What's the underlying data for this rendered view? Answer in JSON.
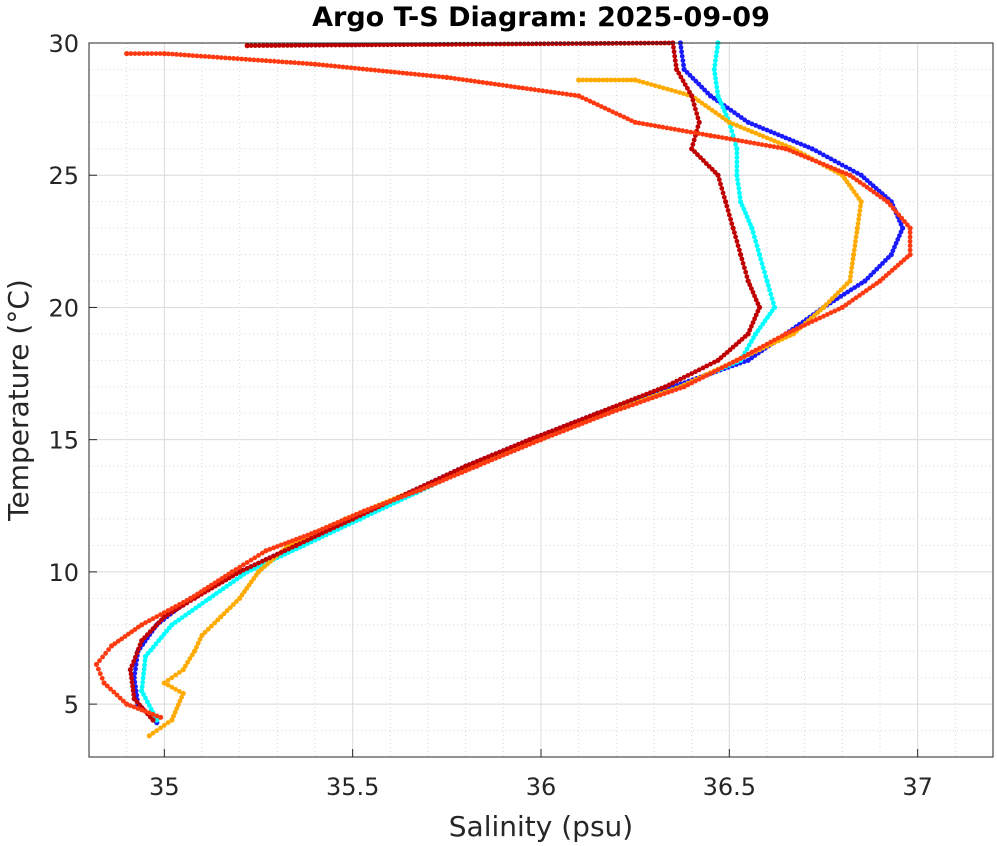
{
  "chart_data": {
    "type": "scatter",
    "title": "Argo T-S Diagram: 2025-09-09",
    "xlabel": "Salinity (psu)",
    "ylabel": "Temperature (°C)",
    "xlim": [
      34.8,
      37.2
    ],
    "ylim": [
      3,
      30
    ],
    "xticks": [
      35,
      35.5,
      36,
      36.5,
      37
    ],
    "xtick_labels": [
      "35",
      "35.5",
      "36",
      "36.5",
      "37"
    ],
    "yticks": [
      5,
      10,
      15,
      20,
      25,
      30
    ],
    "ytick_labels": [
      "5",
      "10",
      "15",
      "20",
      "25",
      "30"
    ],
    "grid": true,
    "minor_grid": true,
    "legend": "none",
    "series": [
      {
        "color": "#1a1aff",
        "points": [
          [
            34.98,
            4.3
          ],
          [
            34.93,
            5.0
          ],
          [
            34.92,
            6.0
          ],
          [
            34.93,
            7.0
          ],
          [
            34.98,
            8.0
          ],
          [
            35.07,
            9.0
          ],
          [
            35.2,
            10.0
          ],
          [
            35.35,
            11.0
          ],
          [
            35.5,
            12.0
          ],
          [
            35.65,
            13.0
          ],
          [
            35.8,
            14.0
          ],
          [
            35.97,
            15.0
          ],
          [
            36.15,
            16.0
          ],
          [
            36.35,
            17.0
          ],
          [
            36.55,
            18.0
          ],
          [
            36.65,
            19.0
          ],
          [
            36.75,
            20.0
          ],
          [
            36.86,
            21.0
          ],
          [
            36.93,
            22.0
          ],
          [
            36.96,
            23.0
          ],
          [
            36.93,
            24.0
          ],
          [
            36.85,
            25.0
          ],
          [
            36.72,
            26.0
          ],
          [
            36.55,
            27.0
          ],
          [
            36.45,
            28.0
          ],
          [
            36.38,
            29.0
          ],
          [
            36.37,
            30.0
          ]
        ]
      },
      {
        "color": "#00ffff",
        "points": [
          [
            34.98,
            4.4
          ],
          [
            34.94,
            5.5
          ],
          [
            34.95,
            6.8
          ],
          [
            35.02,
            8.0
          ],
          [
            35.12,
            9.0
          ],
          [
            35.22,
            10.0
          ],
          [
            35.37,
            11.0
          ],
          [
            35.52,
            12.0
          ],
          [
            35.67,
            13.0
          ],
          [
            35.82,
            14.0
          ],
          [
            35.99,
            15.0
          ],
          [
            36.17,
            16.0
          ],
          [
            36.37,
            17.0
          ],
          [
            36.53,
            18.0
          ],
          [
            36.57,
            19.0
          ],
          [
            36.62,
            20.0
          ],
          [
            36.6,
            21.0
          ],
          [
            36.58,
            22.0
          ],
          [
            36.56,
            23.0
          ],
          [
            36.53,
            24.0
          ],
          [
            36.52,
            25.0
          ],
          [
            36.52,
            26.0
          ],
          [
            36.5,
            27.0
          ],
          [
            36.47,
            28.0
          ],
          [
            36.46,
            29.0
          ],
          [
            36.47,
            30.0
          ]
        ]
      },
      {
        "color": "#ffaa00",
        "points": [
          [
            34.96,
            3.8
          ],
          [
            35.02,
            4.4
          ],
          [
            35.05,
            5.4
          ],
          [
            35.0,
            5.8
          ],
          [
            35.05,
            6.3
          ],
          [
            35.08,
            7.0
          ],
          [
            35.1,
            7.6
          ],
          [
            35.15,
            8.3
          ],
          [
            35.2,
            9.0
          ],
          [
            35.25,
            10.0
          ],
          [
            35.33,
            11.0
          ],
          [
            35.48,
            12.0
          ],
          [
            35.65,
            13.0
          ],
          [
            35.82,
            14.0
          ],
          [
            35.99,
            15.0
          ],
          [
            36.17,
            16.0
          ],
          [
            36.37,
            17.0
          ],
          [
            36.52,
            18.0
          ],
          [
            36.67,
            19.0
          ],
          [
            36.75,
            20.0
          ],
          [
            36.82,
            21.0
          ],
          [
            36.83,
            22.0
          ],
          [
            36.84,
            23.0
          ],
          [
            36.85,
            24.0
          ],
          [
            36.8,
            25.0
          ],
          [
            36.67,
            26.0
          ],
          [
            36.5,
            27.0
          ],
          [
            36.4,
            28.0
          ],
          [
            36.25,
            28.6
          ],
          [
            36.1,
            28.6
          ]
        ]
      },
      {
        "color": "#c00000",
        "points": [
          [
            34.97,
            4.4
          ],
          [
            34.92,
            5.2
          ],
          [
            34.91,
            6.3
          ],
          [
            34.94,
            7.4
          ],
          [
            35.0,
            8.3
          ],
          [
            35.08,
            9.0
          ],
          [
            35.2,
            10.0
          ],
          [
            35.35,
            11.0
          ],
          [
            35.5,
            12.0
          ],
          [
            35.65,
            13.0
          ],
          [
            35.8,
            14.0
          ],
          [
            35.97,
            15.0
          ],
          [
            36.15,
            16.0
          ],
          [
            36.33,
            17.0
          ],
          [
            36.47,
            18.0
          ],
          [
            36.55,
            19.0
          ],
          [
            36.58,
            20.0
          ],
          [
            36.55,
            21.0
          ],
          [
            36.53,
            22.0
          ],
          [
            36.51,
            23.0
          ],
          [
            36.49,
            24.0
          ],
          [
            36.47,
            25.0
          ],
          [
            36.4,
            26.0
          ],
          [
            36.42,
            27.0
          ],
          [
            36.4,
            28.0
          ],
          [
            36.36,
            29.0
          ],
          [
            36.35,
            30.0
          ],
          [
            35.22,
            29.9
          ]
        ]
      },
      {
        "color": "#ff3a10",
        "points": [
          [
            34.99,
            4.5
          ],
          [
            34.9,
            5.0
          ],
          [
            34.84,
            5.8
          ],
          [
            34.82,
            6.5
          ],
          [
            34.86,
            7.2
          ],
          [
            34.94,
            8.0
          ],
          [
            35.07,
            9.0
          ],
          [
            35.18,
            10.0
          ],
          [
            35.27,
            10.8
          ],
          [
            35.4,
            11.5
          ],
          [
            35.53,
            12.3
          ],
          [
            35.68,
            13.1
          ],
          [
            35.83,
            14.0
          ],
          [
            36.0,
            15.0
          ],
          [
            36.18,
            16.0
          ],
          [
            36.38,
            17.0
          ],
          [
            36.52,
            18.0
          ],
          [
            36.65,
            19.0
          ],
          [
            36.8,
            20.0
          ],
          [
            36.9,
            21.0
          ],
          [
            36.98,
            22.0
          ],
          [
            36.98,
            23.0
          ],
          [
            36.92,
            24.0
          ],
          [
            36.82,
            25.0
          ],
          [
            36.65,
            26.0
          ],
          [
            36.45,
            26.5
          ],
          [
            36.25,
            27.0
          ],
          [
            36.1,
            28.0
          ],
          [
            35.75,
            28.7
          ],
          [
            35.4,
            29.2
          ],
          [
            35.0,
            29.6
          ],
          [
            34.9,
            29.6
          ]
        ]
      }
    ]
  }
}
